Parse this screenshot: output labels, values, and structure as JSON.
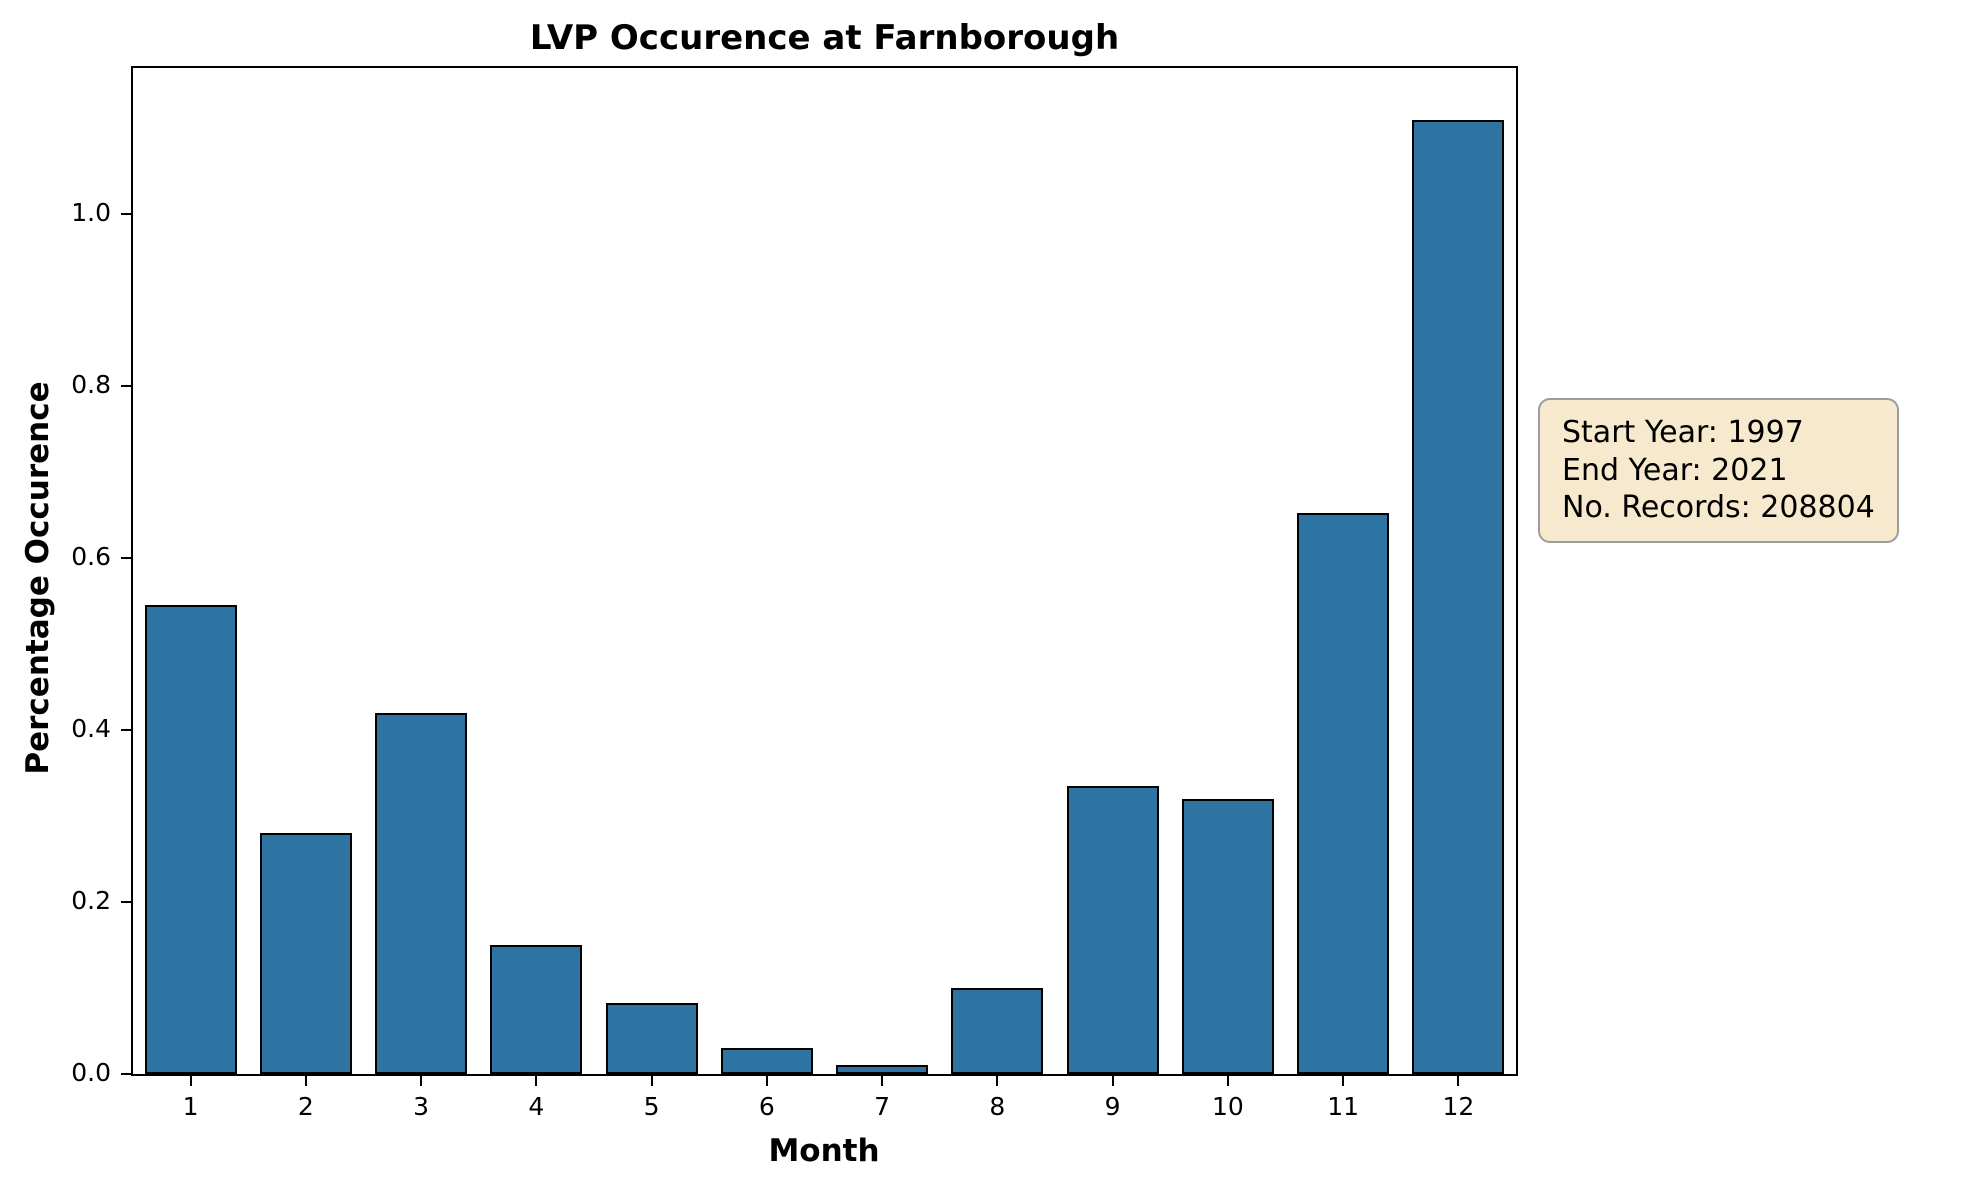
{
  "chart_data": {
    "type": "bar",
    "title": "LVP Occurence at Farnborough",
    "xlabel": "Month",
    "ylabel": "Percentage Occurence",
    "categories": [
      "1",
      "2",
      "3",
      "4",
      "5",
      "6",
      "7",
      "8",
      "9",
      "10",
      "11",
      "12"
    ],
    "values": [
      0.545,
      0.28,
      0.42,
      0.15,
      0.082,
      0.03,
      0.011,
      0.1,
      0.335,
      0.32,
      0.652,
      1.11
    ],
    "ylim": [
      0,
      1.17
    ],
    "yticks": [
      0.0,
      0.2,
      0.4,
      0.6,
      0.8,
      1.0
    ],
    "grid": false,
    "legend": null,
    "bar_color": "#2d74a3",
    "bar_edge_color": "#000000",
    "bar_width_ratio": 0.8
  },
  "annotation": {
    "lines": [
      "Start Year: 1997",
      "End Year: 2021",
      "No. Records: 208804"
    ],
    "background": "#f7e9cd",
    "border_color": "#9c9c9c"
  }
}
